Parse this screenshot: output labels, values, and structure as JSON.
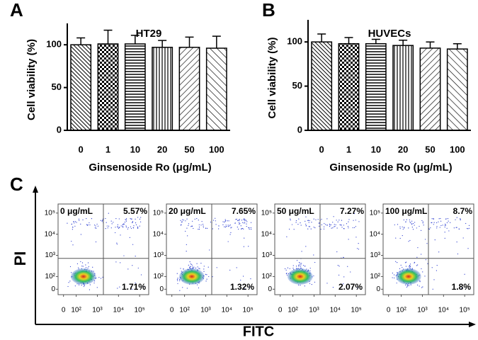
{
  "chart_data": [
    {
      "type": "bar",
      "panel": "A",
      "title": "HT29",
      "categories": [
        "0",
        "1",
        "10",
        "20",
        "50",
        "100"
      ],
      "values": [
        100,
        101,
        101,
        97,
        97,
        96
      ],
      "errors": [
        8,
        16,
        10,
        8,
        12,
        14
      ],
      "ylim": [
        0,
        125
      ],
      "yticks": [
        0,
        50,
        100
      ],
      "color": "#000000",
      "xlabel": "Ginsenoside Ro (μg/mL)",
      "ylabel": "Cell viability (%)"
    },
    {
      "type": "bar",
      "panel": "B",
      "title": "HUVECs",
      "categories": [
        "0",
        "1",
        "10",
        "20",
        "50",
        "100"
      ],
      "values": [
        100,
        98,
        98,
        96,
        93,
        92
      ],
      "errors": [
        9,
        7,
        5,
        6,
        7,
        6
      ],
      "ylim": [
        0,
        125
      ],
      "yticks": [
        0,
        50,
        100
      ],
      "color": "#000000",
      "xlabel": "Ginsenoside Ro (μg/mL)",
      "ylabel": "Cell viability (%)"
    },
    {
      "type": "flow",
      "panel": "C",
      "xlabel": "FITC",
      "ylabel": "PI",
      "log_scale": true,
      "xlim": [
        0,
        100000
      ],
      "ylim": [
        0,
        100000
      ],
      "xticks": [
        0,
        {
          "value": 100,
          "label": "10²"
        },
        {
          "value": 1000,
          "label": "10³"
        },
        {
          "value": 10000,
          "label": "10⁴"
        },
        {
          "value": 100000,
          "label": "10⁵"
        }
      ],
      "yticks": [
        0,
        {
          "value": 100,
          "label": "10²"
        },
        {
          "value": 1000,
          "label": "10³"
        },
        {
          "value": 10000,
          "label": "10⁴"
        },
        {
          "value": 100000,
          "label": "10⁵"
        }
      ],
      "panels": [
        {
          "label": "0 μg/mL",
          "values": [
            5.57,
            1.71
          ],
          "value_labels": [
            "5.57%",
            "1.71%"
          ]
        },
        {
          "label": "20 μg/mL",
          "values": [
            7.65,
            1.32
          ],
          "value_labels": [
            "7.65%",
            "1.32%"
          ]
        },
        {
          "label": "50 μg/mL",
          "values": [
            7.27,
            2.07
          ],
          "value_labels": [
            "7.27%",
            "2.07%"
          ]
        },
        {
          "label": "100 μg/mL",
          "values": [
            8.7,
            1.8
          ],
          "value_labels": [
            "8.7%",
            "1.8%"
          ]
        }
      ]
    }
  ]
}
